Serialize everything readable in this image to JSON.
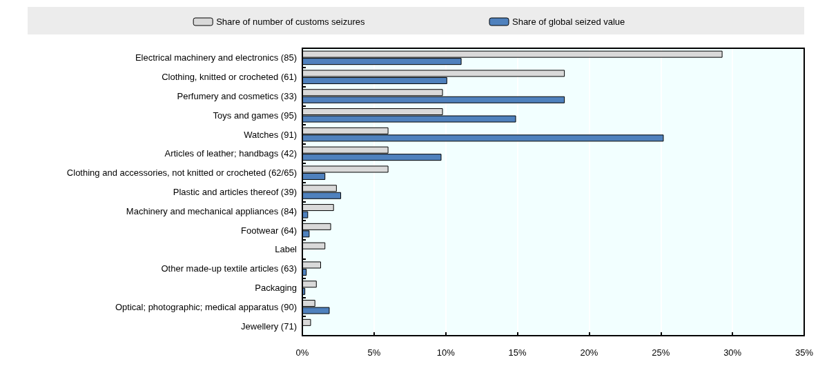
{
  "chart_data": {
    "type": "bar",
    "orientation": "horizontal",
    "categories": [
      "Electrical machinery and electronics (85)",
      "Clothing, knitted or crocheted (61)",
      "Perfumery and cosmetics (33)",
      "Toys and games (95)",
      "Watches (91)",
      "Articles of leather; handbags (42)",
      "Clothing and accessories, not knitted or crocheted (62/65)",
      "Plastic and articles thereof (39)",
      "Machinery and mechanical appliances (84)",
      "Footwear (64)",
      "Label",
      "Other made-up textile articles (63)",
      "Packaging",
      "Optical; photographic; medical apparatus (90)",
      "Jewellery (71)"
    ],
    "series": [
      {
        "name": "Share of number of customs seizures",
        "color": "#d9d9d9",
        "values": [
          29.3,
          18.3,
          9.8,
          9.8,
          6.0,
          6.0,
          6.0,
          2.4,
          2.2,
          2.0,
          1.6,
          1.3,
          1.0,
          0.9,
          0.6
        ]
      },
      {
        "name": "Share of global seized value",
        "color": "#4f81bd",
        "values": [
          11.1,
          10.1,
          18.3,
          14.9,
          25.2,
          9.7,
          1.6,
          2.7,
          0.4,
          0.5,
          null,
          0.3,
          0.2,
          1.9,
          null
        ]
      }
    ],
    "xlim": [
      0,
      35
    ],
    "xticks": [
      {
        "value": 0,
        "label": "0%"
      },
      {
        "value": 5,
        "label": "5%"
      },
      {
        "value": 10,
        "label": "10%"
      },
      {
        "value": 15,
        "label": "15%"
      },
      {
        "value": 20,
        "label": "20%"
      },
      {
        "value": 25,
        "label": "25%"
      },
      {
        "value": 30,
        "label": "30%"
      },
      {
        "value": 35,
        "label": "35%"
      }
    ],
    "grid": "x",
    "legend": "top"
  }
}
